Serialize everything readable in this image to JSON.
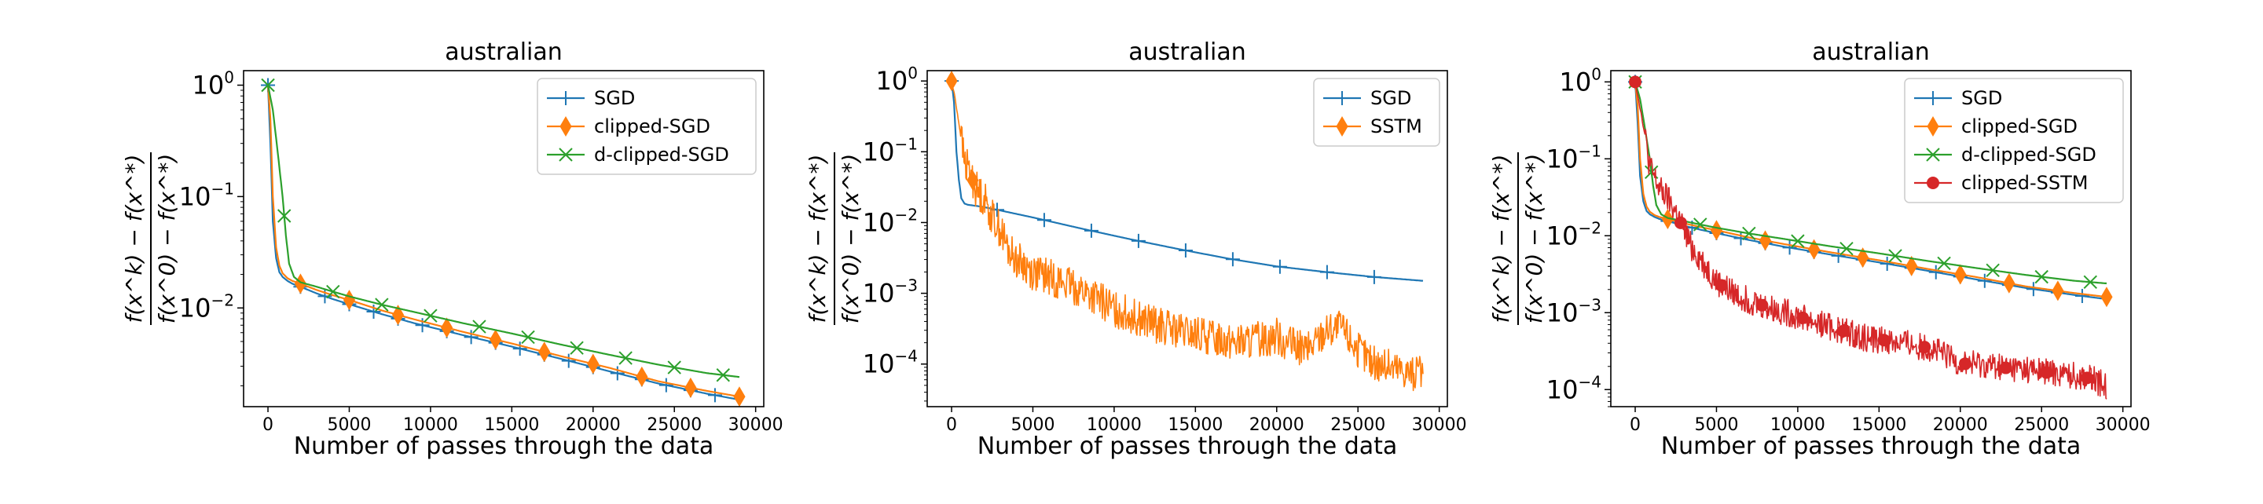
{
  "colors": {
    "blue": "#1f77b4",
    "orange": "#ff7f0e",
    "green": "#2ca02c",
    "red": "#d62728"
  },
  "chart_data": [
    {
      "type": "line",
      "title": "australian",
      "xlabel": "Number of passes through the data",
      "ylabel": "f(x^k) - f(x^*) / f(x^0) - f(x^*)",
      "ylabel_num": "f(x^k) − f(x^*)",
      "ylabel_den": "f(x^0) − f(x^*)",
      "y_scale": "log",
      "xlim": [
        -1500,
        30500
      ],
      "ylim": [
        0.0013,
        1.35
      ],
      "xticks": [
        0,
        5000,
        10000,
        15000,
        20000,
        25000,
        30000
      ],
      "xtick_labels": [
        "0",
        "5000",
        "10000",
        "15000",
        "20000",
        "25000",
        "30000"
      ],
      "yticks": [
        1,
        0.1,
        0.01
      ],
      "ytick_labels": [
        {
          "base": "10",
          "exp": "0"
        },
        {
          "base": "10",
          "exp": "−1"
        },
        {
          "base": "10",
          "exp": "−2"
        }
      ],
      "legend_position": "top-right",
      "series": [
        {
          "name": "SGD",
          "color": "blue",
          "marker": "plus",
          "noise": 0,
          "x": [
            0,
            150,
            300,
            500,
            700,
            900,
            1200,
            1500,
            2000,
            3000,
            4000,
            5000,
            7000,
            9000,
            12000,
            15000,
            18000,
            21000,
            24000,
            27000,
            29000
          ],
          "y": [
            1.0,
            0.3,
            0.06,
            0.028,
            0.021,
            0.019,
            0.0175,
            0.0165,
            0.0155,
            0.0135,
            0.012,
            0.0108,
            0.0088,
            0.0073,
            0.0057,
            0.0045,
            0.0035,
            0.0027,
            0.0021,
            0.0017,
            0.0015
          ],
          "markers_x": [
            0,
            2000,
            3500,
            5000,
            6500,
            8000,
            9500,
            11000,
            12500,
            14000,
            15500,
            17000,
            18500,
            20000,
            21500,
            23000,
            24500,
            26000,
            27500
          ]
        },
        {
          "name": "clipped-SGD",
          "color": "orange",
          "marker": "diamond",
          "noise": 0,
          "x": [
            0,
            150,
            300,
            500,
            700,
            900,
            1200,
            1500,
            2000,
            3000,
            4000,
            5000,
            7000,
            9000,
            12000,
            15000,
            18000,
            21000,
            24000,
            27000,
            29000
          ],
          "y": [
            1.0,
            0.5,
            0.1,
            0.035,
            0.024,
            0.0205,
            0.0185,
            0.0175,
            0.0165,
            0.0145,
            0.013,
            0.0118,
            0.0095,
            0.0079,
            0.0061,
            0.0048,
            0.0037,
            0.0029,
            0.0022,
            0.0018,
            0.0016
          ],
          "markers_x": [
            2000,
            5000,
            8000,
            11000,
            14000,
            17000,
            20000,
            23000,
            26000,
            29000
          ]
        },
        {
          "name": "d-clipped-SGD",
          "color": "green",
          "marker": "x",
          "noise": 0,
          "x": [
            0,
            300,
            600,
            900,
            1100,
            1300,
            1600,
            2000,
            3000,
            4000,
            5000,
            7000,
            9000,
            12000,
            15000,
            18000,
            21000,
            24000,
            27000,
            29000
          ],
          "y": [
            1.0,
            0.6,
            0.25,
            0.1,
            0.045,
            0.025,
            0.019,
            0.017,
            0.0155,
            0.014,
            0.0127,
            0.0107,
            0.0092,
            0.0073,
            0.0059,
            0.0047,
            0.0038,
            0.0031,
            0.0026,
            0.0024
          ],
          "markers_x": [
            0,
            1000,
            4000,
            7000,
            10000,
            13000,
            16000,
            19000,
            22000,
            25000,
            28000
          ]
        }
      ]
    },
    {
      "type": "line",
      "title": "australian",
      "xlabel": "Number of passes through the data",
      "ylabel": "f(x^k) - f(x^*) / f(x^0) - f(x^*)",
      "ylabel_num": "f(x^k) − f(x^*)",
      "ylabel_den": "f(x^0) − f(x^*)",
      "y_scale": "log",
      "xlim": [
        -1500,
        30500
      ],
      "ylim": [
        2.5e-05,
        1.4
      ],
      "xticks": [
        0,
        5000,
        10000,
        15000,
        20000,
        25000,
        30000
      ],
      "xtick_labels": [
        "0",
        "5000",
        "10000",
        "15000",
        "20000",
        "25000",
        "30000"
      ],
      "yticks": [
        1,
        0.1,
        0.01,
        0.001,
        0.0001
      ],
      "ytick_labels": [
        {
          "base": "10",
          "exp": "0"
        },
        {
          "base": "10",
          "exp": "−1"
        },
        {
          "base": "10",
          "exp": "−2"
        },
        {
          "base": "10",
          "exp": "−3"
        },
        {
          "base": "10",
          "exp": "−4"
        }
      ],
      "legend_position": "top-right",
      "series": [
        {
          "name": "SGD",
          "color": "blue",
          "marker": "plus",
          "noise": 0,
          "x": [
            0,
            150,
            300,
            450,
            600,
            800,
            1000,
            1500,
            2000,
            3000,
            5000,
            8000,
            11000,
            14000,
            17000,
            20000,
            23000,
            26000,
            29000
          ],
          "y": [
            1.0,
            0.5,
            0.1,
            0.04,
            0.022,
            0.0185,
            0.0178,
            0.0172,
            0.0165,
            0.0148,
            0.0118,
            0.0082,
            0.0058,
            0.0042,
            0.0031,
            0.0024,
            0.002,
            0.0017,
            0.0015
          ],
          "markers_x": [
            0,
            2800,
            5700,
            8600,
            11500,
            14400,
            17300,
            20200,
            23100,
            26000
          ]
        },
        {
          "name": "SSTM",
          "color": "orange",
          "marker": "diamond",
          "noise": 0.26,
          "x": [
            0,
            200,
            400,
            600,
            800,
            1000,
            1500,
            2000,
            2500,
            3000,
            3500,
            4000,
            5000,
            6000,
            8000,
            10000,
            12000,
            14000,
            16000,
            18000,
            20000,
            21000,
            22000,
            23000,
            24000,
            25000,
            26000,
            27000,
            28000,
            29000
          ],
          "y": [
            1.0,
            0.6,
            0.3,
            0.15,
            0.07,
            0.06,
            0.03,
            0.022,
            0.012,
            0.008,
            0.004,
            0.003,
            0.002,
            0.0017,
            0.0011,
            0.0006,
            0.0004,
            0.00028,
            0.00024,
            0.0002,
            0.00025,
            0.00018,
            0.00016,
            0.0003,
            0.00032,
            0.00016,
            0.0001,
            9e-05,
            8e-05,
            7e-05
          ],
          "markers_x": [
            0,
            1300
          ]
        }
      ]
    },
    {
      "type": "line",
      "title": "australian",
      "xlabel": "Number of passes through the data",
      "ylabel": "f(x^k) - f(x^*) / f(x^0) - f(x^*)",
      "ylabel_num": "f(x^k) − f(x^*)",
      "ylabel_den": "f(x^0) − f(x^*)",
      "y_scale": "log",
      "xlim": [
        -1500,
        30500
      ],
      "ylim": [
        6e-05,
        1.4
      ],
      "xticks": [
        0,
        5000,
        10000,
        15000,
        20000,
        25000,
        30000
      ],
      "xtick_labels": [
        "0",
        "5000",
        "10000",
        "15000",
        "20000",
        "25000",
        "30000"
      ],
      "yticks": [
        1,
        0.1,
        0.01,
        0.001,
        0.0001
      ],
      "ytick_labels": [
        {
          "base": "10",
          "exp": "0"
        },
        {
          "base": "10",
          "exp": "−1"
        },
        {
          "base": "10",
          "exp": "−2"
        },
        {
          "base": "10",
          "exp": "−3"
        },
        {
          "base": "10",
          "exp": "−4"
        }
      ],
      "legend_position": "top-right",
      "series": [
        {
          "name": "SGD",
          "color": "blue",
          "marker": "plus",
          "noise": 0,
          "x": [
            0,
            150,
            300,
            500,
            700,
            900,
            1200,
            1500,
            2000,
            3000,
            4000,
            5000,
            7000,
            9000,
            12000,
            15000,
            18000,
            21000,
            24000,
            27000,
            29000
          ],
          "y": [
            1.0,
            0.3,
            0.06,
            0.028,
            0.021,
            0.019,
            0.0175,
            0.0165,
            0.0155,
            0.0135,
            0.012,
            0.0108,
            0.0088,
            0.0073,
            0.0057,
            0.0045,
            0.0035,
            0.0027,
            0.0021,
            0.0017,
            0.0015
          ],
          "markers_x": [
            0,
            2000,
            3500,
            5000,
            6500,
            8000,
            9500,
            11000,
            12500,
            14000,
            15500,
            17000,
            18500,
            20000,
            21500,
            23000,
            24500,
            26000,
            27500
          ]
        },
        {
          "name": "clipped-SGD",
          "color": "orange",
          "marker": "diamond",
          "noise": 0,
          "x": [
            0,
            150,
            300,
            500,
            700,
            900,
            1200,
            1500,
            2000,
            3000,
            4000,
            5000,
            7000,
            9000,
            12000,
            15000,
            18000,
            21000,
            24000,
            27000,
            29000
          ],
          "y": [
            1.0,
            0.5,
            0.1,
            0.035,
            0.024,
            0.0205,
            0.0185,
            0.0175,
            0.0165,
            0.0145,
            0.013,
            0.0118,
            0.0095,
            0.0079,
            0.0061,
            0.0048,
            0.0037,
            0.0029,
            0.0022,
            0.0018,
            0.0016
          ],
          "markers_x": [
            2000,
            5000,
            8000,
            11000,
            14000,
            17000,
            20000,
            23000,
            26000,
            29000
          ]
        },
        {
          "name": "d-clipped-SGD",
          "color": "green",
          "marker": "x",
          "noise": 0,
          "x": [
            0,
            300,
            600,
            900,
            1100,
            1300,
            1600,
            2000,
            3000,
            4000,
            5000,
            7000,
            9000,
            12000,
            15000,
            18000,
            21000,
            24000,
            27000,
            29000
          ],
          "y": [
            1.0,
            0.6,
            0.25,
            0.1,
            0.045,
            0.025,
            0.019,
            0.017,
            0.0155,
            0.014,
            0.0127,
            0.0107,
            0.0092,
            0.0073,
            0.0059,
            0.0047,
            0.0038,
            0.0031,
            0.0026,
            0.0024
          ],
          "markers_x": [
            0,
            1000,
            4000,
            7000,
            10000,
            13000,
            16000,
            19000,
            22000,
            25000,
            28000
          ]
        },
        {
          "name": "clipped-SSTM",
          "color": "red",
          "marker": "circle",
          "noise": 0.18,
          "x": [
            0,
            200,
            400,
            600,
            800,
            1000,
            1500,
            2000,
            2500,
            3000,
            3500,
            4000,
            5000,
            6000,
            8000,
            10000,
            12000,
            14000,
            16000,
            18000,
            20000,
            22000,
            24000,
            26000,
            28000,
            29000
          ],
          "y": [
            1.0,
            0.6,
            0.35,
            0.2,
            0.1,
            0.07,
            0.04,
            0.03,
            0.02,
            0.012,
            0.007,
            0.005,
            0.0025,
            0.0018,
            0.0012,
            0.0009,
            0.00065,
            0.00048,
            0.00042,
            0.00035,
            0.00022,
            0.0002,
            0.00018,
            0.00016,
            0.00014,
            0.00011
          ],
          "markers_x": [
            0,
            2800,
            5300,
            7800,
            10300,
            12800,
            15300,
            17800,
            20300,
            22800,
            25300,
            27800
          ]
        }
      ]
    }
  ]
}
